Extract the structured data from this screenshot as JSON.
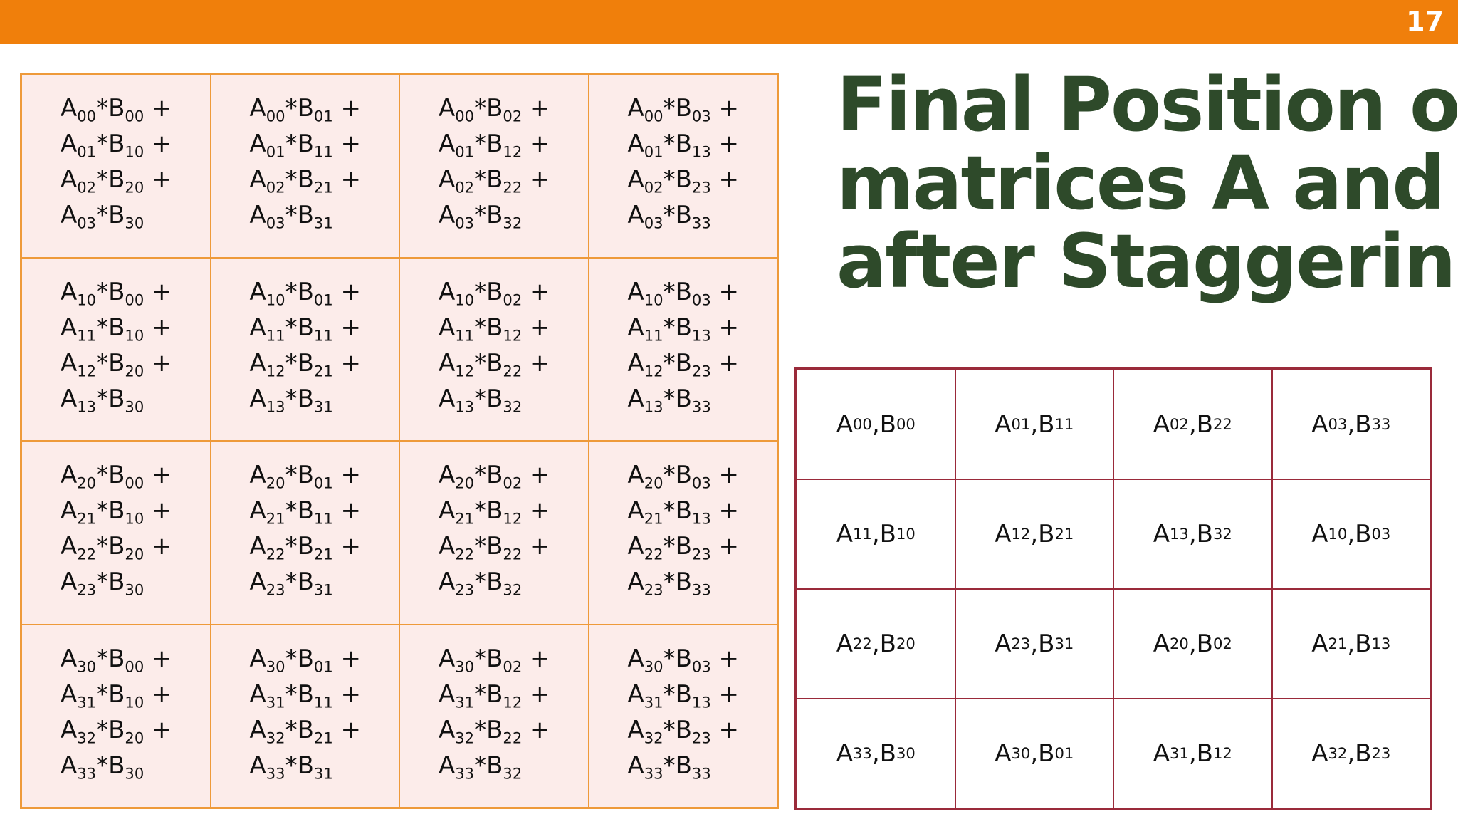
{
  "page_number": "17",
  "title_lines": [
    "Final  Position of",
    "matrices A and B",
    "after Staggering"
  ],
  "sum_grid": [
    [
      [
        "00",
        "00"
      ],
      [
        "01",
        "10"
      ],
      [
        "02",
        "20"
      ],
      [
        "03",
        "30"
      ]
    ],
    [
      [
        "00",
        "01"
      ],
      [
        "01",
        "11"
      ],
      [
        "02",
        "21"
      ],
      [
        "03",
        "31"
      ]
    ],
    [
      [
        "00",
        "02"
      ],
      [
        "01",
        "12"
      ],
      [
        "02",
        "22"
      ],
      [
        "03",
        "32"
      ]
    ],
    [
      [
        "00",
        "03"
      ],
      [
        "01",
        "13"
      ],
      [
        "02",
        "23"
      ],
      [
        "03",
        "33"
      ]
    ],
    [
      [
        "10",
        "00"
      ],
      [
        "11",
        "10"
      ],
      [
        "12",
        "20"
      ],
      [
        "13",
        "30"
      ]
    ],
    [
      [
        "10",
        "01"
      ],
      [
        "11",
        "11"
      ],
      [
        "12",
        "21"
      ],
      [
        "13",
        "31"
      ]
    ],
    [
      [
        "10",
        "02"
      ],
      [
        "11",
        "12"
      ],
      [
        "12",
        "22"
      ],
      [
        "13",
        "32"
      ]
    ],
    [
      [
        "10",
        "03"
      ],
      [
        "11",
        "13"
      ],
      [
        "12",
        "23"
      ],
      [
        "13",
        "33"
      ]
    ],
    [
      [
        "20",
        "00"
      ],
      [
        "21",
        "10"
      ],
      [
        "22",
        "20"
      ],
      [
        "23",
        "30"
      ]
    ],
    [
      [
        "20",
        "01"
      ],
      [
        "21",
        "11"
      ],
      [
        "22",
        "21"
      ],
      [
        "23",
        "31"
      ]
    ],
    [
      [
        "20",
        "02"
      ],
      [
        "21",
        "12"
      ],
      [
        "22",
        "22"
      ],
      [
        "23",
        "32"
      ]
    ],
    [
      [
        "20",
        "03"
      ],
      [
        "21",
        "13"
      ],
      [
        "22",
        "23"
      ],
      [
        "23",
        "33"
      ]
    ],
    [
      [
        "30",
        "00"
      ],
      [
        "31",
        "10"
      ],
      [
        "32",
        "20"
      ],
      [
        "33",
        "30"
      ]
    ],
    [
      [
        "30",
        "01"
      ],
      [
        "31",
        "11"
      ],
      [
        "32",
        "21"
      ],
      [
        "33",
        "31"
      ]
    ],
    [
      [
        "30",
        "02"
      ],
      [
        "31",
        "12"
      ],
      [
        "32",
        "22"
      ],
      [
        "33",
        "32"
      ]
    ],
    [
      [
        "30",
        "03"
      ],
      [
        "31",
        "13"
      ],
      [
        "32",
        "23"
      ],
      [
        "33",
        "33"
      ]
    ]
  ],
  "staggered_grid": [
    [
      "00",
      "00"
    ],
    [
      "01",
      "11"
    ],
    [
      "02",
      "22"
    ],
    [
      "03",
      "33"
    ],
    [
      "11",
      "10"
    ],
    [
      "12",
      "21"
    ],
    [
      "13",
      "32"
    ],
    [
      "10",
      "03"
    ],
    [
      "22",
      "20"
    ],
    [
      "23",
      "31"
    ],
    [
      "20",
      "02"
    ],
    [
      "21",
      "13"
    ],
    [
      "33",
      "30"
    ],
    [
      "30",
      "01"
    ],
    [
      "31",
      "12"
    ],
    [
      "32",
      "23"
    ]
  ],
  "colors": {
    "top_bar": "#f07f0b",
    "title": "#2e4a2a",
    "left_grid_fill": "#fcecea",
    "left_grid_border": "#ee9a3a",
    "right_grid_border": "#9a2a3a"
  }
}
